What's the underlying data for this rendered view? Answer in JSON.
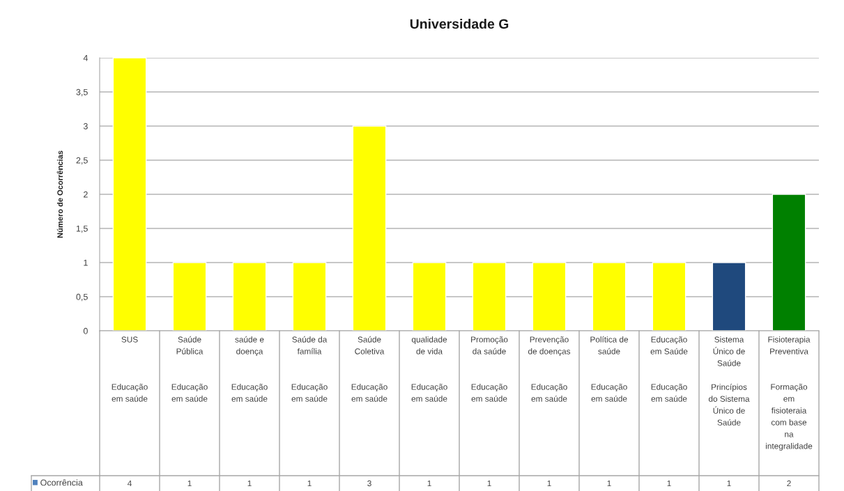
{
  "chart_data": {
    "type": "bar",
    "title": "Universidade G",
    "ylabel": "Número de Ocorrências",
    "categories": [
      "SUS\nEducação em saúde",
      "Saúde Pública\nEducação em saúde",
      "saúde e doença\nEducação em saúde",
      "Saúde da família\nEducação em saúde",
      "Saúde Coletiva\nEducação em saúde",
      "qualidade de vida\nEducação em saúde",
      "Promoção da saúde\nEducação em saúde",
      "Prevenção de doenças\nEducação em saúde",
      "Política de saúde\nEducação em saúde",
      "Educação em Saúde\nEducação em saúde",
      "Sistema Único de Saúde\nPrincípios do Sistema Único de Saúde",
      "Fisioterapia Preventiva\nFormação em fisioteraia com base na integralidade"
    ],
    "series": [
      {
        "name": "Ocorrência",
        "color": "#4f81bd",
        "colors": [
          "#ffff00",
          "#ffff00",
          "#ffff00",
          "#ffff00",
          "#ffff00",
          "#ffff00",
          "#ffff00",
          "#ffff00",
          "#ffff00",
          "#ffff00",
          "#1f497d",
          "#008000"
        ],
        "values": [
          4,
          1,
          1,
          1,
          3,
          1,
          1,
          1,
          1,
          1,
          1,
          2
        ]
      }
    ],
    "ylim": [
      0,
      4
    ],
    "yticks": [
      0,
      {
        "value": 0.5,
        "label": "0,5"
      },
      1,
      {
        "value": 1.5,
        "label": "1,5"
      },
      2,
      {
        "value": 2.5,
        "label": "2,5"
      },
      3,
      {
        "value": 3.5,
        "label": "3,5"
      },
      4
    ],
    "grid": "y",
    "legend": "bottom left",
    "data_labels": true
  }
}
